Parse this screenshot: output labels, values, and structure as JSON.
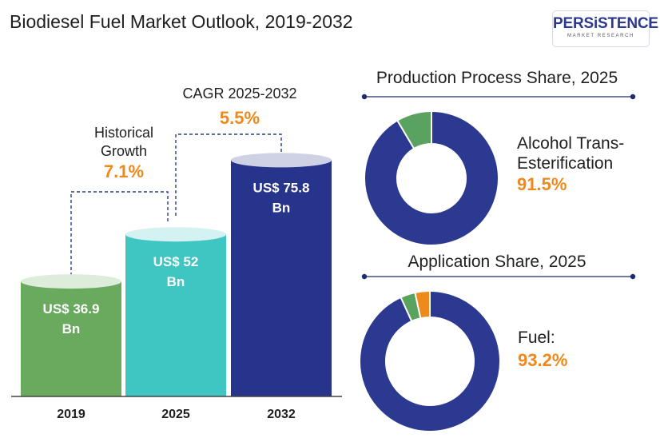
{
  "title": "Biodiesel Fuel Market Outlook, 2019-2032",
  "logo": {
    "main": "PERSiSTENCE",
    "sub": "MARKET RESEARCH"
  },
  "colors": {
    "bar_2019": "#6aaa5f",
    "bar_2025": "#3fc6c3",
    "bar_2032": "#27348b",
    "accent": "#f0891b",
    "donut_main": "#2b3990",
    "donut_green": "#5aa25f",
    "donut_orange": "#f0891b"
  },
  "annotations": {
    "historical": {
      "label_line1": "Historical",
      "label_line2": "Growth",
      "value": "7.1%"
    },
    "cagr": {
      "label": "CAGR 2025-2032",
      "value": "5.5%"
    }
  },
  "chart_data": [
    {
      "type": "bar",
      "categories": [
        "2019",
        "2025",
        "2032"
      ],
      "values": [
        36.9,
        52,
        75.8
      ],
      "value_labels": [
        [
          "US$ 36.9",
          "Bn"
        ],
        [
          "US$ 52",
          "Bn"
        ],
        [
          "US$ 75.8",
          "Bn"
        ]
      ],
      "title": "",
      "xlabel": "",
      "ylabel": ""
    },
    {
      "type": "pie",
      "title": "Production Process  Share, 2025",
      "highlight_label_lines": [
        "Alcohol Trans-",
        "Esterification"
      ],
      "highlight_value": "91.5%",
      "slices": [
        {
          "name": "Alcohol Trans-Esterification",
          "value": 91.5,
          "color": "#2b3990"
        },
        {
          "name": "",
          "value": 8.5,
          "color": "#5aa25f"
        }
      ]
    },
    {
      "type": "pie",
      "title": "Application Share, 2025",
      "highlight_label_lines": [
        "Fuel:"
      ],
      "highlight_value": "93.2%",
      "slices": [
        {
          "name": "Fuel",
          "value": 93.2,
          "color": "#2b3990"
        },
        {
          "name": "",
          "value": 3.4,
          "color": "#5aa25f"
        },
        {
          "name": "",
          "value": 3.4,
          "color": "#f0891b"
        }
      ]
    }
  ]
}
